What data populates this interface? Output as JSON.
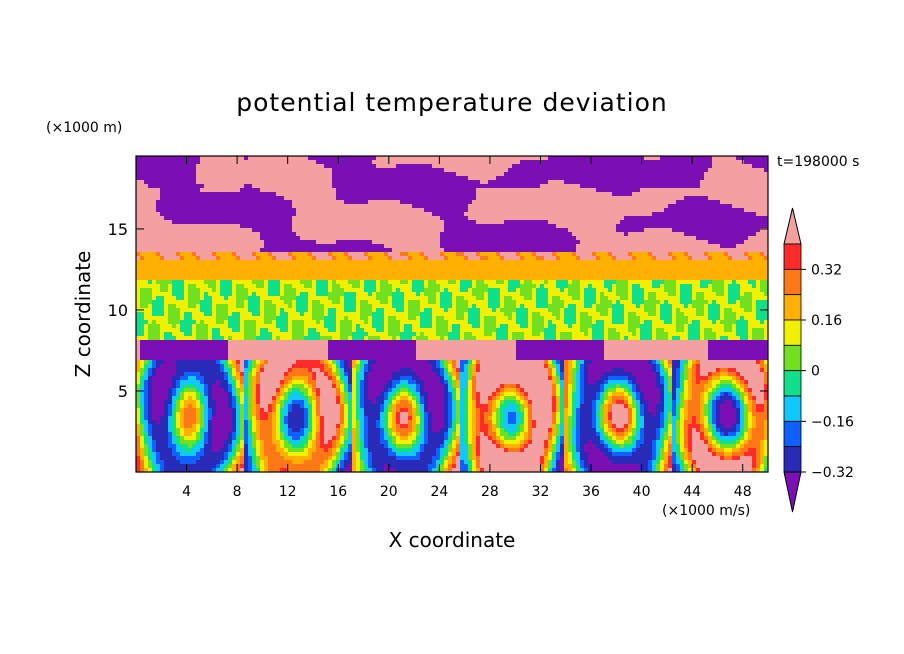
{
  "chart_data": {
    "type": "heatmap",
    "title": "potential temperature deviation",
    "xlabel": "X coordinate",
    "ylabel": "Z coordinate",
    "x_unit": "(×1000 m/s)",
    "y_unit": "(×1000 m)",
    "time_label": "t=198000 s",
    "xlim": [
      0,
      50
    ],
    "ylim": [
      0,
      19.5
    ],
    "x_ticks": [
      4,
      8,
      12,
      16,
      20,
      24,
      28,
      32,
      36,
      40,
      44,
      48
    ],
    "y_ticks": [
      5,
      10,
      15
    ],
    "colorbar": {
      "levels": [
        -0.4,
        -0.32,
        -0.24,
        -0.16,
        -0.08,
        0,
        0.08,
        0.16,
        0.24,
        0.32,
        0.4
      ],
      "tick_labels": [
        "0.32",
        "0.16",
        "0",
        "−0.16",
        "−0.32"
      ],
      "tick_values": [
        0.32,
        0.16,
        0,
        -0.16,
        -0.32
      ],
      "colors": [
        "#7a0fb4",
        "#2a2ab8",
        "#1060ff",
        "#10c8ff",
        "#10e08a",
        "#70e020",
        "#f0f000",
        "#ffb000",
        "#ff7818",
        "#ff2a2a",
        "#f4a0a0"
      ]
    },
    "regions": {
      "top_layer": {
        "z_range": [
          13.5,
          19.5
        ],
        "description_values": [
          0.4,
          -0.4
        ]
      },
      "middle_band": {
        "z_range": [
          8.2,
          13.2
        ],
        "values": [
          0.0,
          0.08,
          0.16
        ]
      },
      "lower_band": {
        "z_range": [
          0,
          8
        ],
        "values": [
          -0.4,
          0.4
        ]
      }
    }
  },
  "colors": {
    "frame": "#000000",
    "background": "#ffffff"
  }
}
